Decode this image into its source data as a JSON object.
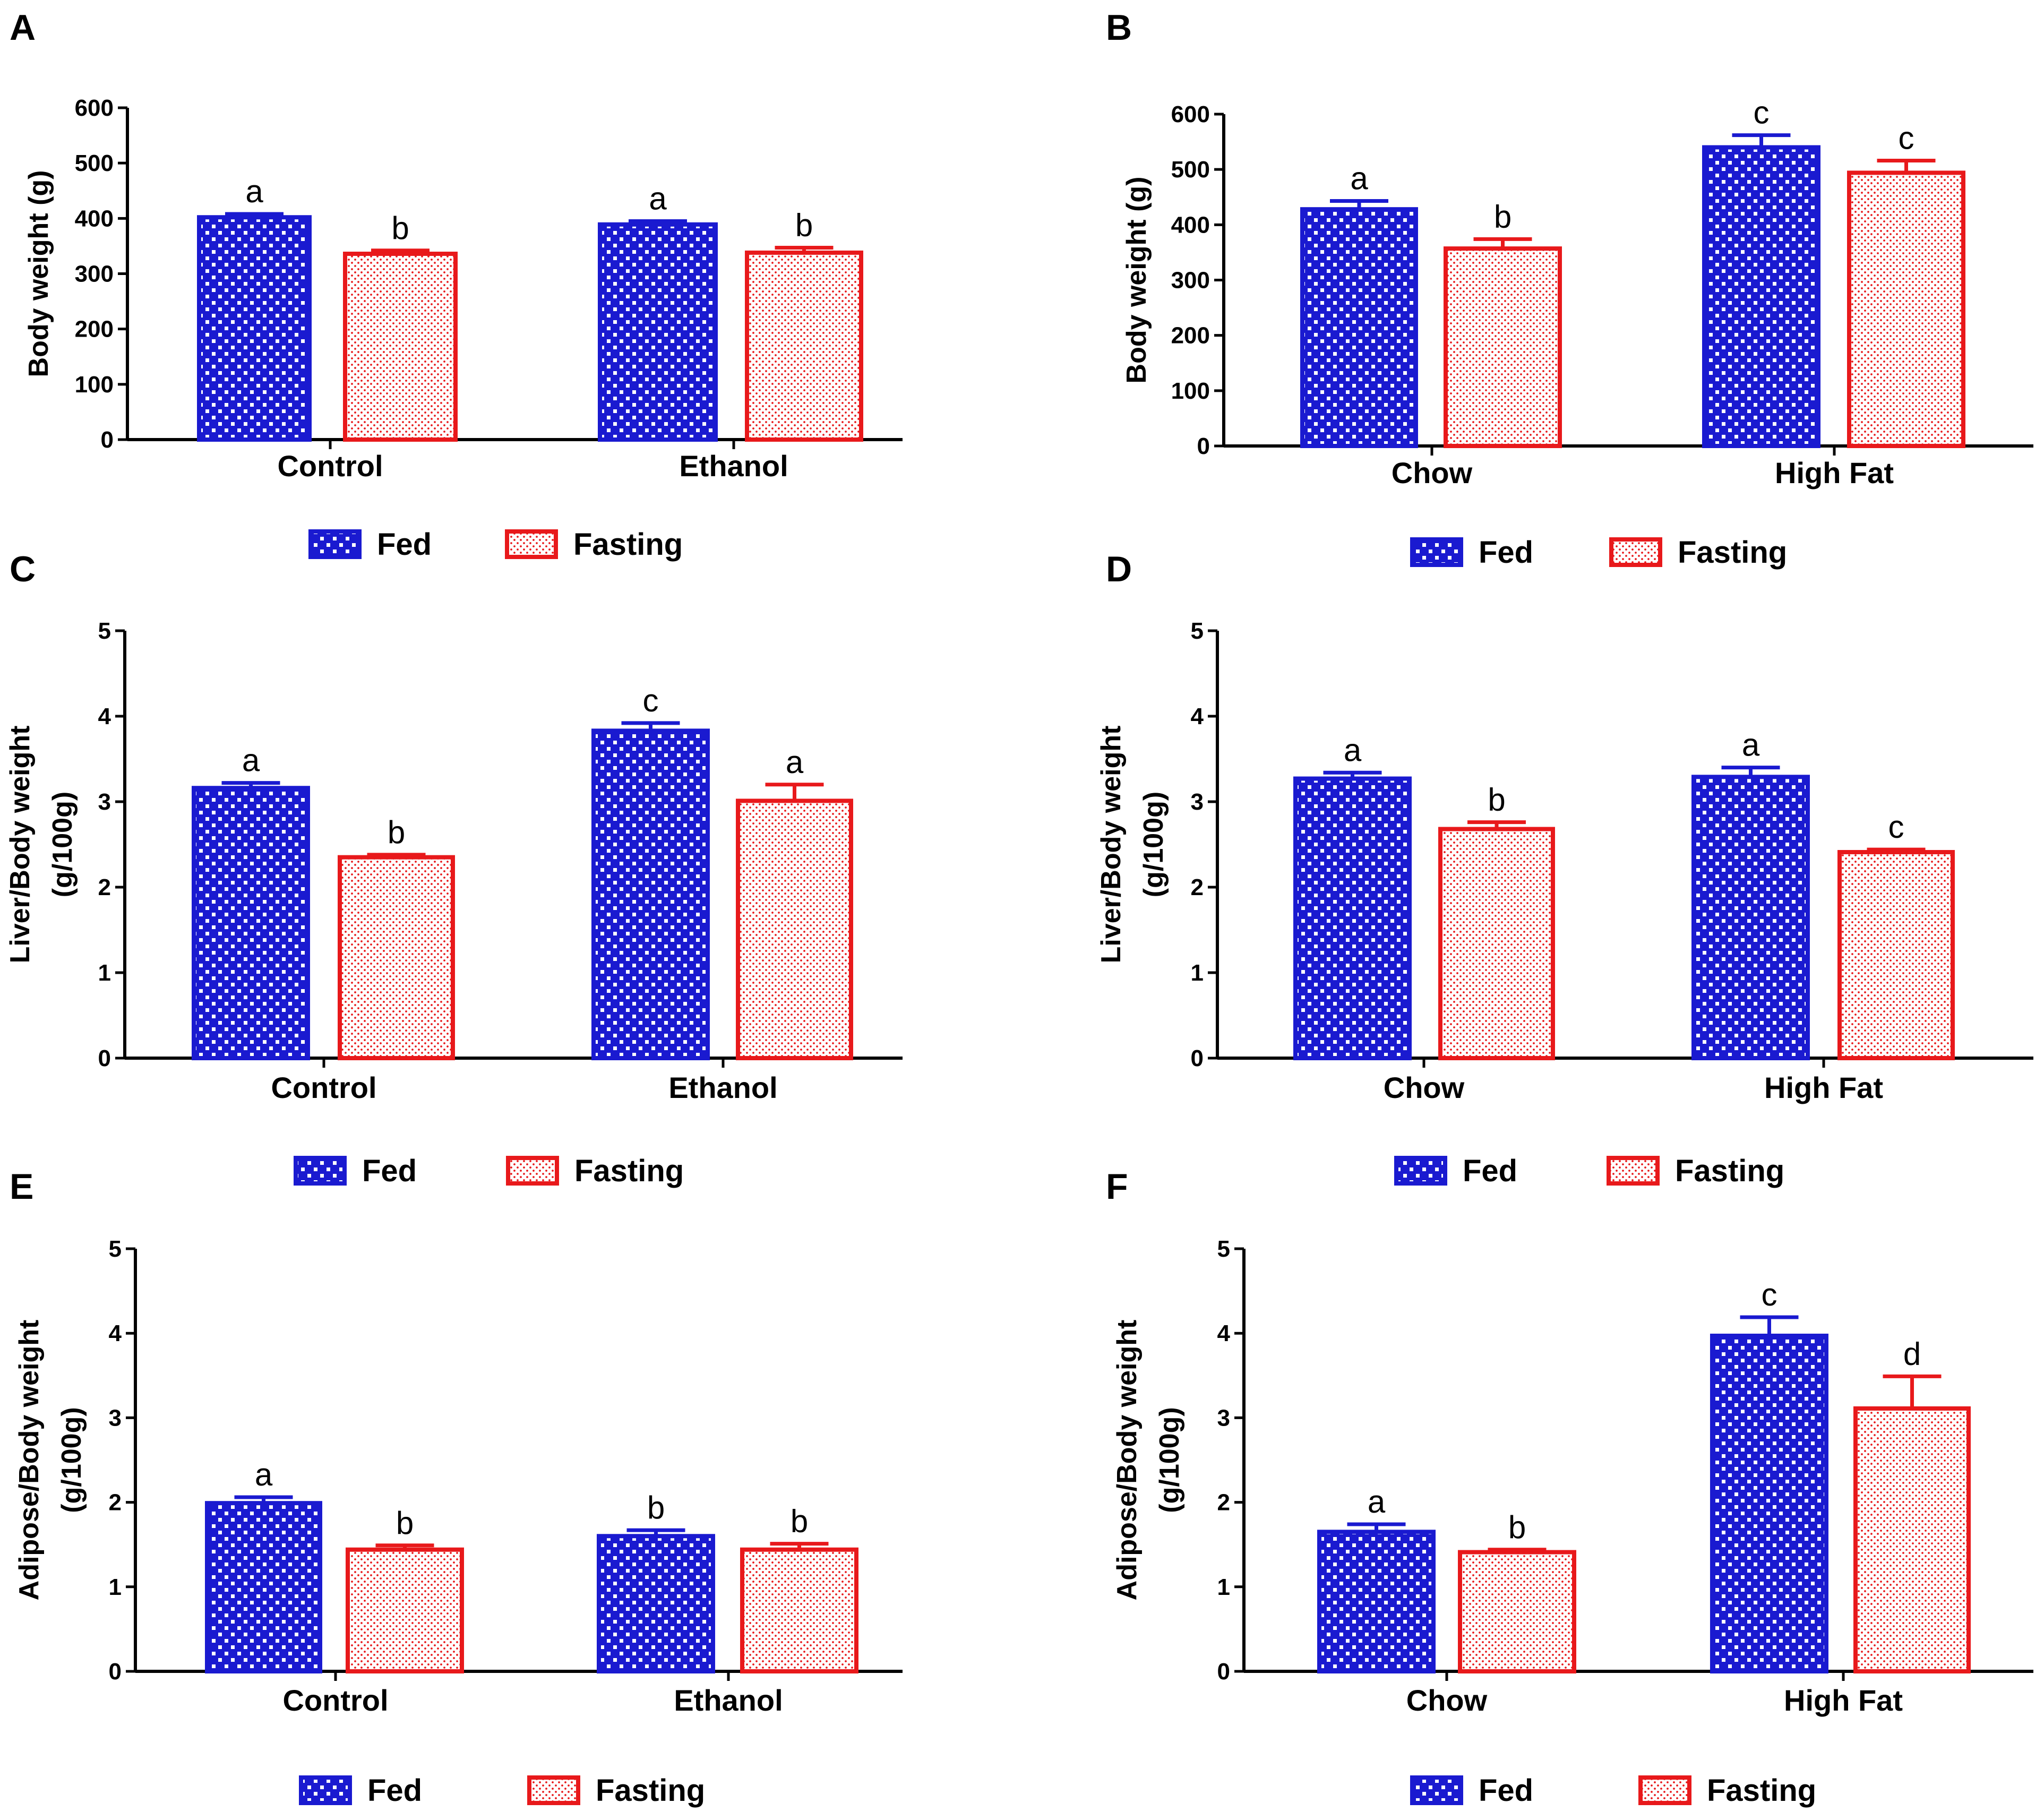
{
  "colors": {
    "fed": "#1a1ad0",
    "fasting": "#e8191b",
    "axis": "#000000"
  },
  "legend": {
    "fed": "Fed",
    "fasting": "Fasting"
  },
  "chart_data": [
    {
      "panel": "A",
      "type": "bar",
      "title": "",
      "xlabel": "",
      "ylabel_lines": [
        "Body weight (g)"
      ],
      "ylim": [
        0,
        600
      ],
      "yticks": [
        0,
        100,
        200,
        300,
        400,
        500,
        600
      ],
      "categories": [
        "Control",
        "Ethanol"
      ],
      "series": [
        {
          "name": "Fed",
          "values": [
            402,
            389
          ],
          "errors": [
            6,
            6
          ],
          "letters": [
            "a",
            "a"
          ]
        },
        {
          "name": "Fasting",
          "values": [
            336,
            338
          ],
          "errors": [
            6,
            9
          ],
          "letters": [
            "b",
            "b"
          ]
        }
      ]
    },
    {
      "panel": "B",
      "type": "bar",
      "title": "",
      "xlabel": "",
      "ylabel_lines": [
        "Body weight (g)"
      ],
      "ylim": [
        0,
        600
      ],
      "yticks": [
        0,
        100,
        200,
        300,
        400,
        500,
        600
      ],
      "categories": [
        "Chow",
        "High Fat"
      ],
      "series": [
        {
          "name": "Fed",
          "values": [
            428,
            540
          ],
          "errors": [
            15,
            22
          ],
          "letters": [
            "a",
            "c"
          ]
        },
        {
          "name": "Fasting",
          "values": [
            357,
            494
          ],
          "errors": [
            17,
            22
          ],
          "letters": [
            "b",
            "c"
          ]
        }
      ]
    },
    {
      "panel": "C",
      "type": "bar",
      "title": "",
      "xlabel": "",
      "ylabel_lines": [
        "Liver/Body weight",
        "(g/100g)"
      ],
      "ylim": [
        0,
        5
      ],
      "yticks": [
        0,
        1,
        2,
        3,
        4,
        5
      ],
      "categories": [
        "Control",
        "Ethanol"
      ],
      "series": [
        {
          "name": "Fed",
          "values": [
            3.16,
            3.83
          ],
          "errors": [
            0.06,
            0.09
          ],
          "letters": [
            "a",
            "c"
          ]
        },
        {
          "name": "Fasting",
          "values": [
            2.35,
            3.01
          ],
          "errors": [
            0.03,
            0.19
          ],
          "letters": [
            "b",
            "a"
          ]
        }
      ]
    },
    {
      "panel": "D",
      "type": "bar",
      "title": "",
      "xlabel": "",
      "ylabel_lines": [
        "Liver/Body weight",
        "(g/100g)"
      ],
      "ylim": [
        0,
        5
      ],
      "yticks": [
        0,
        1,
        2,
        3,
        4,
        5
      ],
      "categories": [
        "Chow",
        "High Fat"
      ],
      "series": [
        {
          "name": "Fed",
          "values": [
            3.27,
            3.29
          ],
          "errors": [
            0.07,
            0.11
          ],
          "letters": [
            "a",
            "a"
          ]
        },
        {
          "name": "Fasting",
          "values": [
            2.68,
            2.41
          ],
          "errors": [
            0.08,
            0.03
          ],
          "letters": [
            "b",
            "c"
          ]
        }
      ]
    },
    {
      "panel": "E",
      "type": "bar",
      "title": "",
      "xlabel": "",
      "ylabel_lines": [
        "Adipose/Body weight",
        "(g/100g)"
      ],
      "ylim": [
        0,
        5
      ],
      "yticks": [
        0,
        1,
        2,
        3,
        4,
        5
      ],
      "categories": [
        "Control",
        "Ethanol"
      ],
      "series": [
        {
          "name": "Fed",
          "values": [
            1.99,
            1.6
          ],
          "errors": [
            0.07,
            0.07
          ],
          "letters": [
            "a",
            "b"
          ]
        },
        {
          "name": "Fasting",
          "values": [
            1.44,
            1.44
          ],
          "errors": [
            0.05,
            0.07
          ],
          "letters": [
            "b",
            "b"
          ]
        }
      ]
    },
    {
      "panel": "F",
      "type": "bar",
      "title": "",
      "xlabel": "",
      "ylabel_lines": [
        "Adipose/Body weight",
        "(g/100g)"
      ],
      "ylim": [
        0,
        5
      ],
      "yticks": [
        0,
        1,
        2,
        3,
        4,
        5
      ],
      "categories": [
        "Chow",
        "High Fat"
      ],
      "series": [
        {
          "name": "Fed",
          "values": [
            1.65,
            3.97
          ],
          "errors": [
            0.09,
            0.22
          ],
          "letters": [
            "a",
            "c"
          ]
        },
        {
          "name": "Fasting",
          "values": [
            1.41,
            3.11
          ],
          "errors": [
            0.03,
            0.38
          ],
          "letters": [
            "b",
            "d"
          ]
        }
      ]
    }
  ]
}
